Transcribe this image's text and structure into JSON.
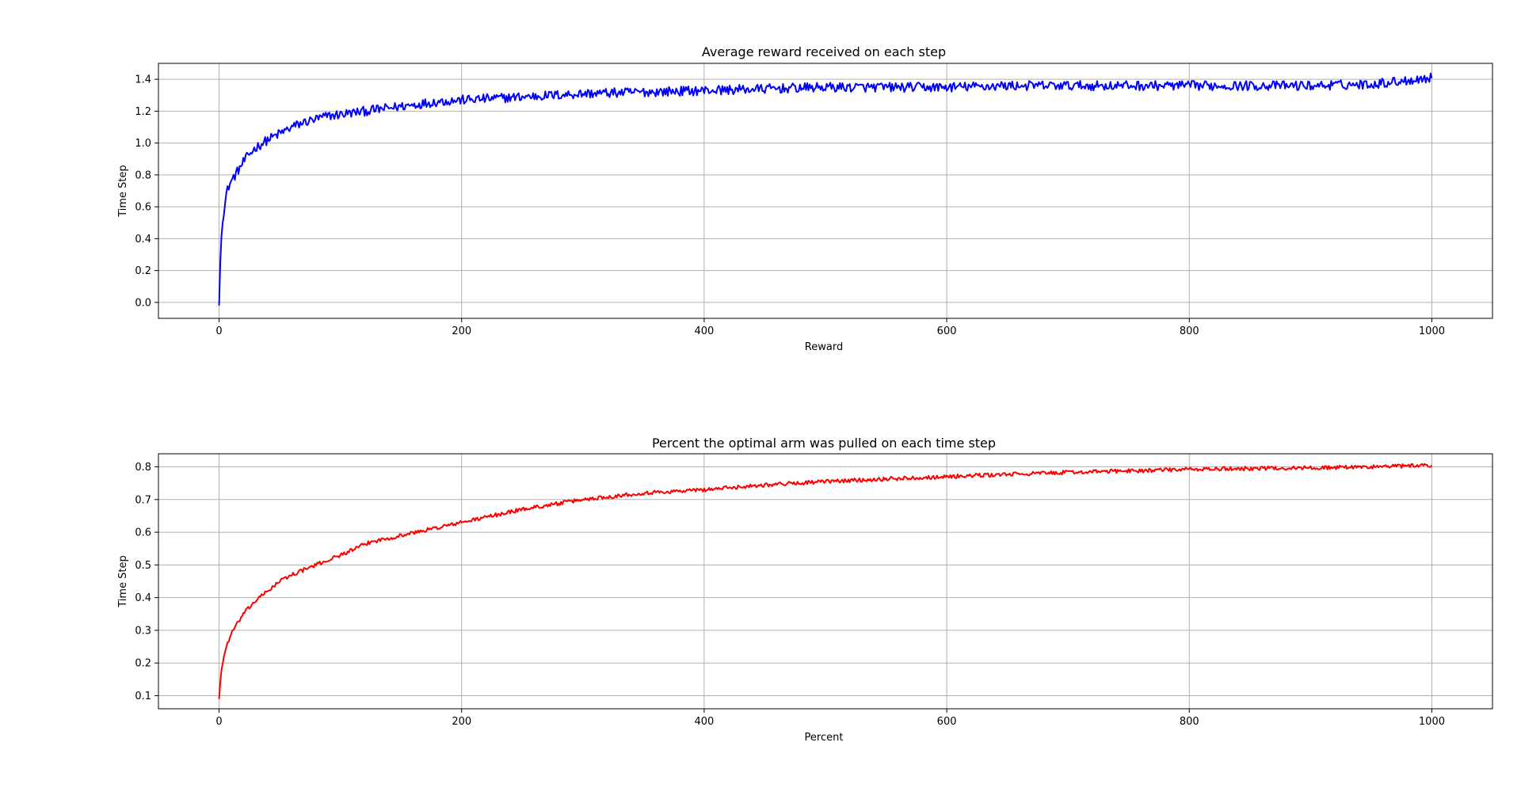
{
  "chart_data": [
    {
      "type": "line",
      "title": "Average reward received on each step",
      "xlabel": "Reward",
      "ylabel": "Time Step",
      "xlim": [
        -50,
        1050
      ],
      "ylim": [
        -0.1,
        1.5
      ],
      "xticks": [
        0,
        200,
        400,
        600,
        800,
        1000
      ],
      "yticks": [
        0.0,
        0.2,
        0.4,
        0.6,
        0.8,
        1.0,
        1.2,
        1.4
      ],
      "ytick_format": 1,
      "grid": true,
      "color": "#0000ff",
      "series": [
        {
          "x": [
            0,
            1,
            2,
            3,
            4,
            5,
            6,
            8,
            10,
            15,
            20,
            25,
            30,
            40,
            50,
            60,
            70,
            80,
            90,
            100,
            120,
            140,
            160,
            180,
            200,
            250,
            300,
            350,
            400,
            450,
            500,
            550,
            600,
            650,
            700,
            750,
            800,
            850,
            900,
            950,
            1000
          ],
          "y": [
            -0.02,
            0.25,
            0.42,
            0.53,
            0.58,
            0.62,
            0.68,
            0.73,
            0.76,
            0.82,
            0.88,
            0.93,
            0.97,
            1.02,
            1.06,
            1.1,
            1.13,
            1.15,
            1.17,
            1.18,
            1.2,
            1.22,
            1.24,
            1.26,
            1.27,
            1.29,
            1.31,
            1.32,
            1.33,
            1.34,
            1.35,
            1.35,
            1.35,
            1.36,
            1.36,
            1.36,
            1.36,
            1.36,
            1.36,
            1.37,
            1.41
          ],
          "noise": 0.03
        }
      ]
    },
    {
      "type": "line",
      "title": "Percent the optimal arm was pulled on each time step",
      "xlabel": "Percent",
      "ylabel": "Time Step",
      "xlim": [
        -50,
        1050
      ],
      "ylim": [
        0.06,
        0.84
      ],
      "xticks": [
        0,
        200,
        400,
        600,
        800,
        1000
      ],
      "yticks": [
        0.1,
        0.2,
        0.3,
        0.4,
        0.5,
        0.6,
        0.7,
        0.8
      ],
      "ytick_format": 1,
      "grid": true,
      "color": "#ff0000",
      "series": [
        {
          "x": [
            0,
            1,
            2,
            4,
            6,
            8,
            10,
            15,
            20,
            30,
            40,
            50,
            60,
            80,
            100,
            125,
            150,
            175,
            200,
            250,
            300,
            350,
            400,
            450,
            500,
            550,
            600,
            650,
            700,
            750,
            800,
            850,
            900,
            950,
            1000
          ],
          "y": [
            0.09,
            0.14,
            0.18,
            0.22,
            0.25,
            0.27,
            0.29,
            0.32,
            0.35,
            0.39,
            0.42,
            0.45,
            0.47,
            0.5,
            0.53,
            0.57,
            0.59,
            0.61,
            0.63,
            0.67,
            0.7,
            0.72,
            0.73,
            0.745,
            0.755,
            0.763,
            0.77,
            0.777,
            0.783,
            0.788,
            0.792,
            0.795,
            0.797,
            0.8,
            0.805
          ],
          "noise": 0.006
        }
      ]
    }
  ]
}
